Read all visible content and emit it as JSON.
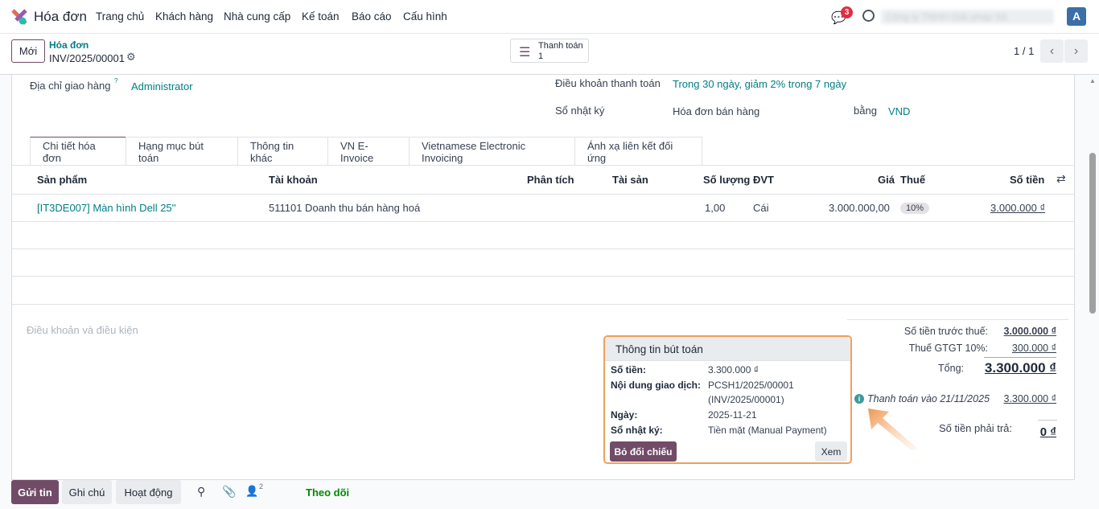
{
  "navbar": {
    "app_name": "Hóa đơn",
    "menu": [
      "Trang chủ",
      "Khách hàng",
      "Nhà cung cấp",
      "Kế toán",
      "Báo cáo",
      "Cấu hình"
    ],
    "message_count": "3",
    "company_blurred": "Công ty TNHH Giải pháp Số",
    "avatar_letter": "A",
    "brand_colors": {
      "primary": "#714b67",
      "link": "#017e84",
      "badge": "#e02d43",
      "avatar": "#3a6fa8"
    }
  },
  "control_panel": {
    "new_label": "Mới",
    "breadcrumb_parent": "Hóa đơn",
    "record_name": "INV/2025/00001",
    "smart_button": {
      "label": "Thanh toán",
      "count": "1"
    },
    "pager": "1 / 1"
  },
  "form": {
    "delivery_address": {
      "label": "Địa chỉ giao hàng",
      "help": "?",
      "value": "Administrator"
    },
    "payment_terms": {
      "label": "Điều khoản thanh toán",
      "value": "Trong 30 ngày, giảm 2% trong 7 ngày"
    },
    "journal": {
      "label": "Sổ nhật ký",
      "value": "Hóa đơn bán hàng",
      "currency_label": "bằng",
      "currency": "VND"
    },
    "tabs": [
      "Chi tiết hóa đơn",
      "Hạng mục bút toán",
      "Thông tin khác",
      "VN E-Invoice",
      "Vietnamese Electronic Invoicing",
      "Ánh xạ liên kết đối ứng"
    ],
    "table": {
      "headers": [
        "Sản phẩm",
        "Tài khoản",
        "Phân tích",
        "Tài sản",
        "Số lượng",
        "ĐVT",
        "Giá",
        "Thuế",
        "Số tiền"
      ],
      "rows": [
        {
          "product": "[IT3DE007] Màn hình Dell 25''",
          "account": "511101 Doanh thu bán hàng hoá",
          "qty": "1,00",
          "uom": "Cái",
          "price": "3.000.000,00",
          "tax": "10%",
          "amount": "3.000.000 ₫"
        }
      ]
    },
    "terms_placeholder": "Điều khoản và điều kiện",
    "totals": {
      "untaxed_label": "Số tiền trước thuế:",
      "untaxed": "3.000.000 ₫",
      "tax_label": "Thuế GTGT 10%:",
      "tax": "300.000 ₫",
      "total_label": "Tổng:",
      "total": "3.300.000 ₫",
      "payment_label": "Thanh toán vào 21/11/2025",
      "payment": "3.300.000 ₫",
      "due_label": "Số tiền phải trả:",
      "due": "0 ₫"
    }
  },
  "popover": {
    "title": "Thông tin bút toán",
    "amount_label": "Số tiền:",
    "amount": "3.300.000 ₫",
    "memo_label": "Nội dung giao dịch:",
    "memo1": "PCSH1/2025/00001",
    "memo2": "(INV/2025/00001)",
    "date_label": "Ngày:",
    "date": "2025-11-21",
    "journal_label": "Sổ nhật ký:",
    "journal": "Tiền mặt (Manual Payment)",
    "unreconcile": "Bỏ đối chiếu",
    "view": "Xem"
  },
  "chatter": {
    "send": "Gửi tin",
    "note": "Ghi chú",
    "activity": "Hoạt động",
    "followers_count": "2",
    "follow": "Theo dõi"
  }
}
